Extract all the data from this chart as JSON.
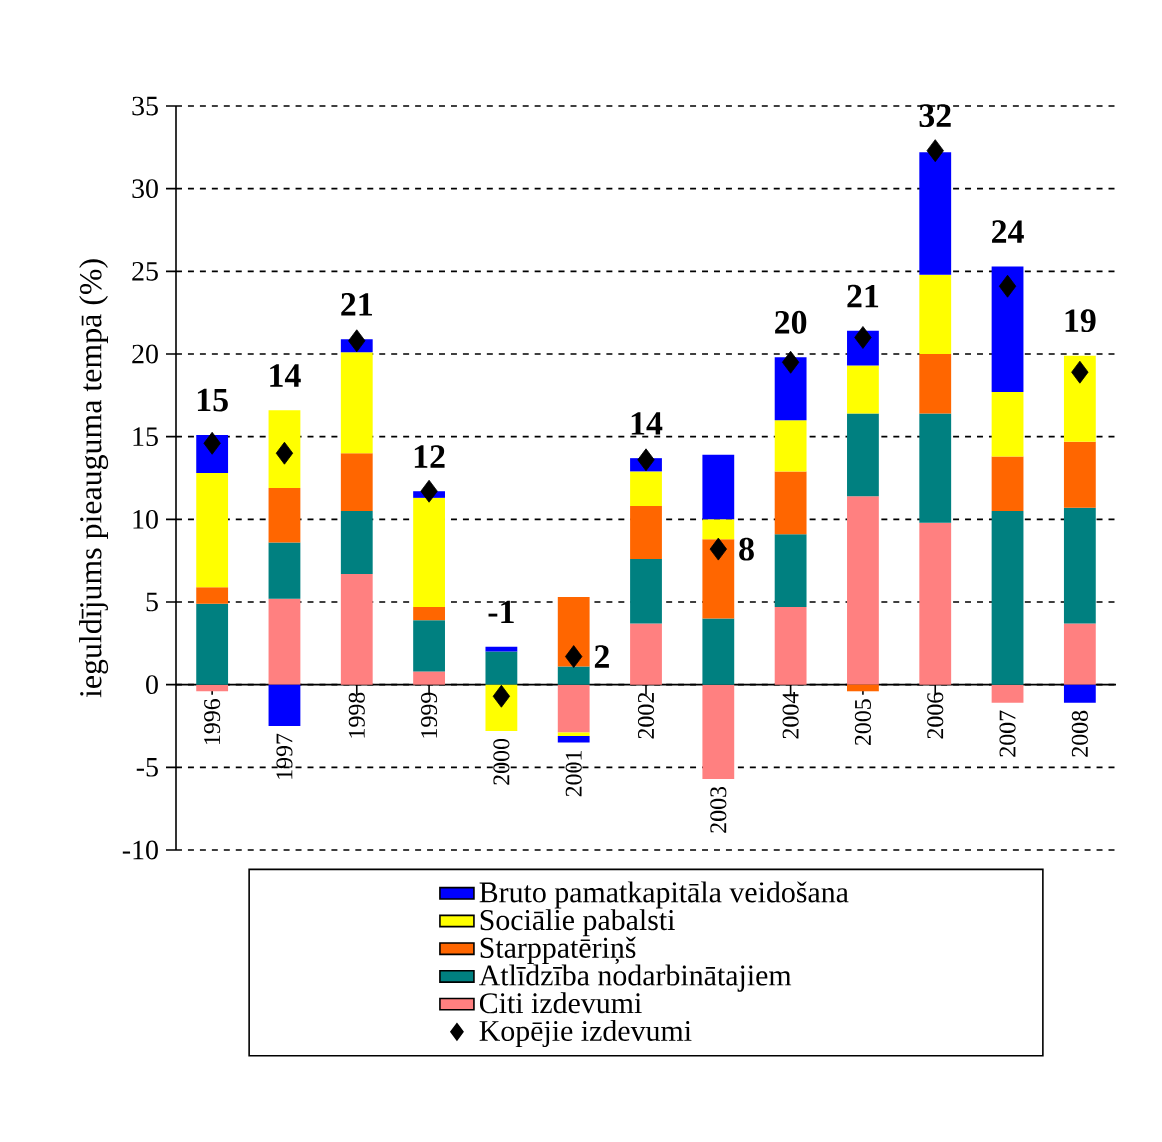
{
  "chart_data": {
    "type": "bar",
    "stacked": true,
    "ylabel": "ieguldījums pieauguma tempā (%)",
    "categories": [
      "1996",
      "1997",
      "1998",
      "1999",
      "2000",
      "2001",
      "2002",
      "2003",
      "2004",
      "2005",
      "2006",
      "2007",
      "2008"
    ],
    "series": [
      {
        "name": "Citi izdevumi",
        "color": "#ff8080",
        "values": [
          -0.4,
          5.2,
          6.7,
          0.8,
          null,
          -2.9,
          3.7,
          -5.7,
          4.7,
          11.4,
          9.8,
          -1.1,
          3.7
        ]
      },
      {
        "name": "Atlīdzība nodarbinātajiem",
        "color": "#008080",
        "values": [
          4.9,
          3.4,
          3.8,
          3.1,
          2.0,
          1.1,
          3.9,
          4.0,
          4.4,
          5.0,
          6.6,
          10.5,
          7.0
        ]
      },
      {
        "name": "Starppatēriņš",
        "color": "#ff6600",
        "values": [
          1.0,
          3.3,
          3.5,
          0.8,
          null,
          4.2,
          3.2,
          4.8,
          3.8,
          -0.4,
          3.6,
          3.3,
          4.0
        ]
      },
      {
        "name": "Sociālie pabalsti",
        "color": "#ffff00",
        "values": [
          6.9,
          4.7,
          6.1,
          6.6,
          -2.8,
          -0.2,
          2.1,
          1.2,
          3.1,
          2.9,
          4.8,
          3.9,
          5.2
        ]
      },
      {
        "name": "Bruto pamatkapitāla veidošana",
        "color": "#0000ff",
        "values": [
          2.3,
          -2.5,
          0.8,
          0.4,
          0.3,
          -0.4,
          0.8,
          3.9,
          3.8,
          2.1,
          7.4,
          7.6,
          -1.1
        ]
      },
      {
        "name": "Kopējie izdevumi",
        "type": "scatter",
        "color": "#000000",
        "marker": "diamond",
        "values": [
          14.6,
          14.0,
          20.8,
          11.7,
          -0.7,
          1.7,
          13.6,
          8.2,
          19.5,
          21.0,
          32.3,
          24.1,
          18.9
        ],
        "value_labels": [
          "15",
          "14",
          "21",
          "12",
          "-1",
          "2",
          "14",
          "8",
          "20",
          "21",
          "32",
          "24",
          "19"
        ]
      }
    ],
    "ylim": [
      -10,
      35
    ],
    "yticks": [
      -10,
      -5,
      0,
      5,
      10,
      15,
      20,
      25,
      30,
      35
    ],
    "grid": "y",
    "legend": "bottom"
  }
}
